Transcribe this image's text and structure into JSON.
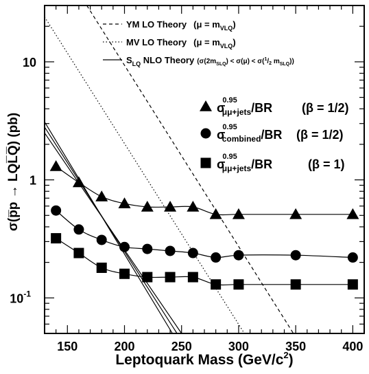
{
  "chart_data": {
    "type": "line",
    "title": "",
    "xlabel": "Leptoquark Mass (GeV/c²)",
    "ylabel": "σ(p̅p → LQL̅Q̅) (pb)",
    "xlim": [
      130,
      410
    ],
    "ylim": [
      0.05,
      30
    ],
    "yscale": "log",
    "xticks": [
      150,
      200,
      250,
      300,
      350,
      400
    ],
    "yticks": [
      {
        "value": 10,
        "label": "10"
      },
      {
        "value": 1,
        "label": "1"
      },
      {
        "value": 0.1,
        "label": "10",
        "sup": "-1"
      }
    ],
    "theory_legend": [
      {
        "name": "YM LO  Theory",
        "extra": "(μ = m",
        "sub": "VLQ",
        "close": ")",
        "style": "dashed"
      },
      {
        "name": "MV LO  Theory",
        "extra": "(μ = m",
        "sub": "VLQ",
        "close": ")",
        "style": "dotted"
      },
      {
        "name": "S",
        "name_sub": "LQ",
        "name_rest": " NLO Theory",
        "extra": "(σ(2m",
        "sub": "SLQ",
        "extra2": ") < σ(μ) < σ(",
        "frac_num": "1",
        "frac_den": "2",
        "extra3": " m",
        "sub2": "SLQ",
        "close": "))",
        "style": "solid"
      }
    ],
    "series": [
      {
        "marker": "triangle",
        "sup": "0.95",
        "sub": "μμ+jets",
        "label_rest": "/BR",
        "beta": "(β = 1/2)",
        "x": [
          140,
          160,
          180,
          200,
          220,
          240,
          260,
          280,
          300,
          350,
          400
        ],
        "y": [
          1.3,
          0.95,
          0.72,
          0.63,
          0.59,
          0.59,
          0.59,
          0.51,
          0.51,
          0.51,
          0.51
        ]
      },
      {
        "marker": "circle",
        "sup": "0.95",
        "sub": "combined",
        "label_rest": "/BR",
        "beta": "(β = 1/2)",
        "x": [
          140,
          160,
          180,
          200,
          220,
          240,
          260,
          280,
          300,
          350,
          400
        ],
        "y": [
          0.55,
          0.38,
          0.31,
          0.27,
          0.26,
          0.25,
          0.24,
          0.22,
          0.23,
          0.23,
          0.22
        ]
      },
      {
        "marker": "square",
        "sup": "0.95",
        "sub": "μμ+jets",
        "label_rest": "/BR",
        "beta": "(β = 1)",
        "x": [
          140,
          160,
          180,
          200,
          220,
          240,
          260,
          280,
          300,
          350,
          400
        ],
        "y": [
          0.32,
          0.24,
          0.18,
          0.16,
          0.15,
          0.15,
          0.15,
          0.13,
          0.13,
          0.13,
          0.13
        ]
      }
    ],
    "theory_curves": [
      {
        "style": "dashed",
        "x": [
          167,
          348
        ],
        "y": [
          30,
          0.05
        ]
      },
      {
        "style": "dotted",
        "x": [
          130,
          305
        ],
        "y": [
          24,
          0.05
        ]
      },
      {
        "style": "solid",
        "x": [
          130,
          242
        ],
        "y": [
          3.1,
          0.05
        ]
      },
      {
        "style": "solid",
        "x": [
          130,
          246
        ],
        "y": [
          2.8,
          0.05
        ]
      },
      {
        "style": "solid",
        "x": [
          130,
          250
        ],
        "y": [
          2.5,
          0.05
        ]
      }
    ]
  }
}
